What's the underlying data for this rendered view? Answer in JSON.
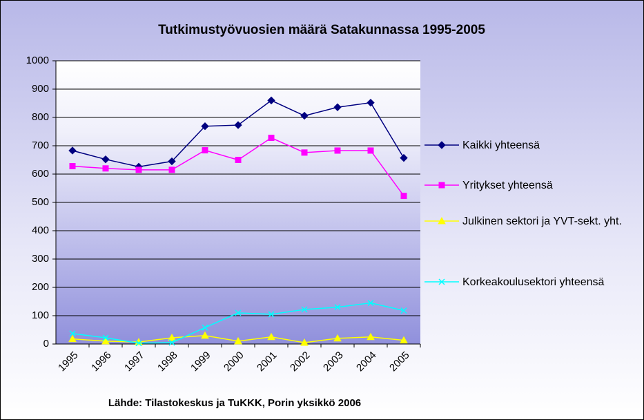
{
  "chart_data": {
    "type": "line",
    "title": "Tutkimustyövuosien määrä Satakunnassa 1995-2005",
    "source": "Lähde: Tilastokeskus ja TuKKK, Porin yksikkö 2006",
    "categories": [
      "1995",
      "1996",
      "1997",
      "1998",
      "1999",
      "2000",
      "2001",
      "2002",
      "2003",
      "2004",
      "2005"
    ],
    "series": [
      {
        "name": "Kaikki yhteensä",
        "color": "#000080",
        "marker": "diamond",
        "values": [
          683,
          652,
          626,
          645,
          769,
          773,
          860,
          806,
          836,
          852,
          657
        ]
      },
      {
        "name": "Yritykset yhteensä",
        "color": "#ff00ff",
        "marker": "square",
        "values": [
          628,
          620,
          615,
          615,
          684,
          650,
          728,
          676,
          683,
          683,
          523
        ]
      },
      {
        "name": "Julkinen sektori ja YVT-sekt. yht.",
        "color": "#ffff00",
        "marker": "triangle",
        "values": [
          18,
          10,
          7,
          22,
          30,
          10,
          25,
          5,
          20,
          25,
          13
        ]
      },
      {
        "name": "Korkeakoulusektori yhteensä",
        "color": "#00ffff",
        "marker": "x",
        "values": [
          37,
          22,
          3,
          5,
          58,
          110,
          105,
          122,
          130,
          145,
          118
        ]
      }
    ],
    "ylim": [
      0,
      1000
    ],
    "yticks": [
      0,
      100,
      200,
      300,
      400,
      500,
      600,
      700,
      800,
      900,
      1000
    ],
    "grid": true,
    "legend": "right"
  }
}
